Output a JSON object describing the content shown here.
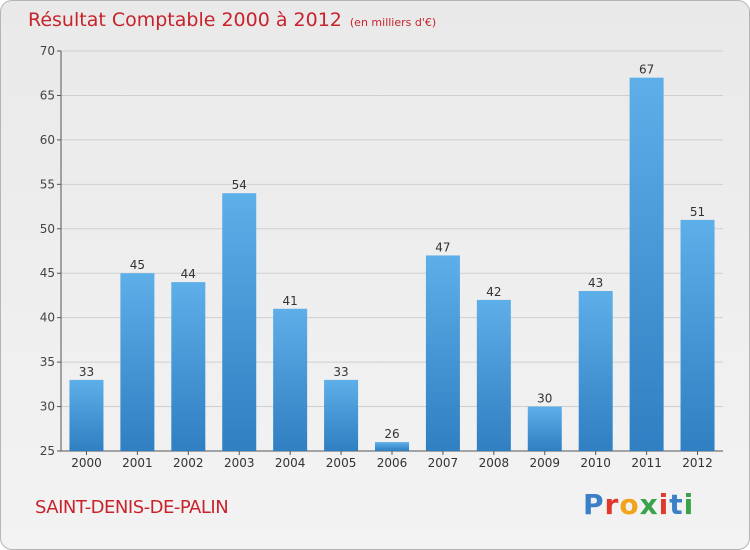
{
  "header": {
    "title": "Résultat Comptable 2000 à 2012",
    "subtitle": "(en milliers d'€)"
  },
  "footer": {
    "city": "SAINT-DENIS-DE-PALIN",
    "logo": "Proxiti"
  },
  "colors": {
    "bar": "#3f93d6",
    "bar_light": "#5aaae6",
    "title": "#c8232c"
  },
  "chart_data": {
    "type": "bar",
    "title": "Résultat Comptable 2000 à 2012",
    "ylabel": "en milliers d'€",
    "categories": [
      "2000",
      "2001",
      "2002",
      "2003",
      "2004",
      "2005",
      "2006",
      "2007",
      "2008",
      "2009",
      "2010",
      "2011",
      "2012"
    ],
    "values": [
      33,
      45,
      44,
      54,
      41,
      33,
      26,
      47,
      42,
      30,
      43,
      67,
      51
    ],
    "ylim": [
      25,
      70
    ],
    "yticks": [
      25,
      30,
      35,
      40,
      45,
      50,
      55,
      60,
      65,
      70
    ],
    "grid": true
  }
}
